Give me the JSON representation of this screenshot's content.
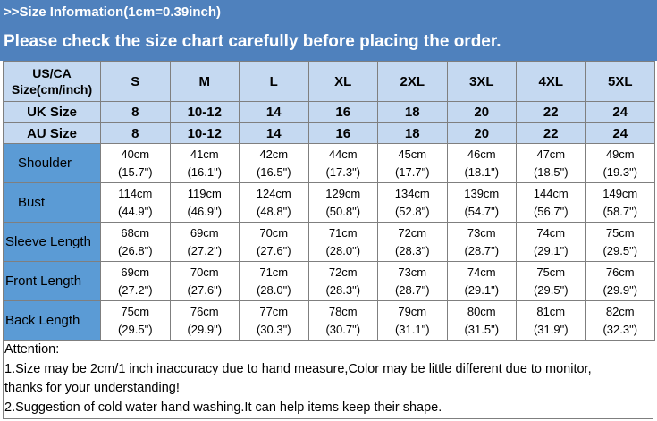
{
  "banner": {
    "title": ">>Size Information(1cm=0.39inch)",
    "subtitle": "Please check the size chart carefully before placing the order."
  },
  "colors": {
    "banner": "#4f81bd",
    "header_cells": "#c5d9f1",
    "row_labels": "#5b9bd5"
  },
  "table": {
    "header": {
      "label_line1": "US/CA",
      "label_line2": "Size(cm/inch)",
      "sizes": [
        "S",
        "M",
        "L",
        "XL",
        "2XL",
        "3XL",
        "4XL",
        "5XL"
      ]
    },
    "uk": {
      "label": "UK Size",
      "values": [
        "8",
        "10-12",
        "14",
        "16",
        "18",
        "20",
        "22",
        "24"
      ]
    },
    "au": {
      "label": "AU Size",
      "values": [
        "8",
        "10-12",
        "14",
        "16",
        "18",
        "20",
        "22",
        "24"
      ]
    },
    "rows": [
      {
        "label": "Shoulder",
        "cm": [
          "40cm",
          "41cm",
          "42cm",
          "44cm",
          "45cm",
          "46cm",
          "47cm",
          "49cm"
        ],
        "inch": [
          "(15.7\")",
          "(16.1\")",
          "(16.5\")",
          "(17.3\")",
          "(17.7\")",
          "(18.1\")",
          "(18.5\")",
          "(19.3\")"
        ]
      },
      {
        "label": "Bust",
        "cm": [
          "114cm",
          "119cm",
          "124cm",
          "129cm",
          "134cm",
          "139cm",
          "144cm",
          "149cm"
        ],
        "inch": [
          "(44.9\")",
          "(46.9\")",
          "(48.8\")",
          "(50.8\")",
          "(52.8\")",
          "(54.7\")",
          "(56.7\")",
          "(58.7\")"
        ]
      },
      {
        "label": "Sleeve Length",
        "cm": [
          "68cm",
          "69cm",
          "70cm",
          "71cm",
          "72cm",
          "73cm",
          "74cm",
          "75cm"
        ],
        "inch": [
          "(26.8\")",
          "(27.2\")",
          "(27.6\")",
          "(28.0\")",
          "(28.3\")",
          "(28.7\")",
          "(29.1\")",
          "(29.5\")"
        ]
      },
      {
        "label": "Front Length",
        "cm": [
          "69cm",
          "70cm",
          "71cm",
          "72cm",
          "73cm",
          "74cm",
          "75cm",
          "76cm"
        ],
        "inch": [
          "(27.2\")",
          "(27.6\")",
          "(28.0\")",
          "(28.3\")",
          "(28.7\")",
          "(29.1\")",
          "(29.5\")",
          "(29.9\")"
        ]
      },
      {
        "label": "Back Length",
        "cm": [
          "75cm",
          "76cm",
          "77cm",
          "78cm",
          "79cm",
          "80cm",
          "81cm",
          "82cm"
        ],
        "inch": [
          "(29.5\")",
          "(29.9\")",
          "(30.3\")",
          "(30.7\")",
          "(31.1\")",
          "(31.5\")",
          "(31.9\")",
          "(32.3\")"
        ]
      }
    ]
  },
  "attention": {
    "heading": "Attention:",
    "line1": "1.Size may be 2cm/1 inch inaccuracy due to hand measure,Color may be little different due to monitor,",
    "line2": "thanks for your understanding!",
    "line3": "2.Suggestion of cold water hand washing.It can help items keep their shape."
  }
}
